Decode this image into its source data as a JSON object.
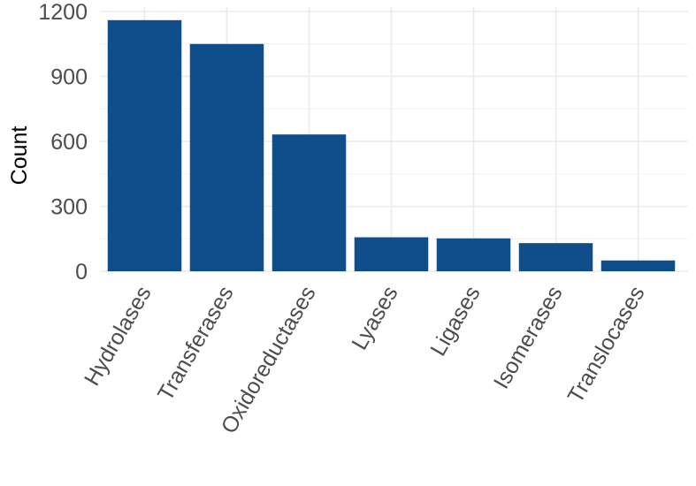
{
  "chart_data": {
    "type": "bar",
    "categories": [
      "Hydrolases",
      "Transferases",
      "Oxidoreductases",
      "Lyases",
      "Ligases",
      "Isomerases",
      "Translocases"
    ],
    "values": [
      1160,
      1050,
      632,
      157,
      152,
      130,
      50
    ],
    "title": "",
    "xlabel": "",
    "ylabel": "Count",
    "ylim": [
      0,
      1200
    ],
    "yticks": [
      0,
      300,
      600,
      900,
      1200
    ],
    "grid": true,
    "legend": "none",
    "bar_color": "#104E8B"
  }
}
